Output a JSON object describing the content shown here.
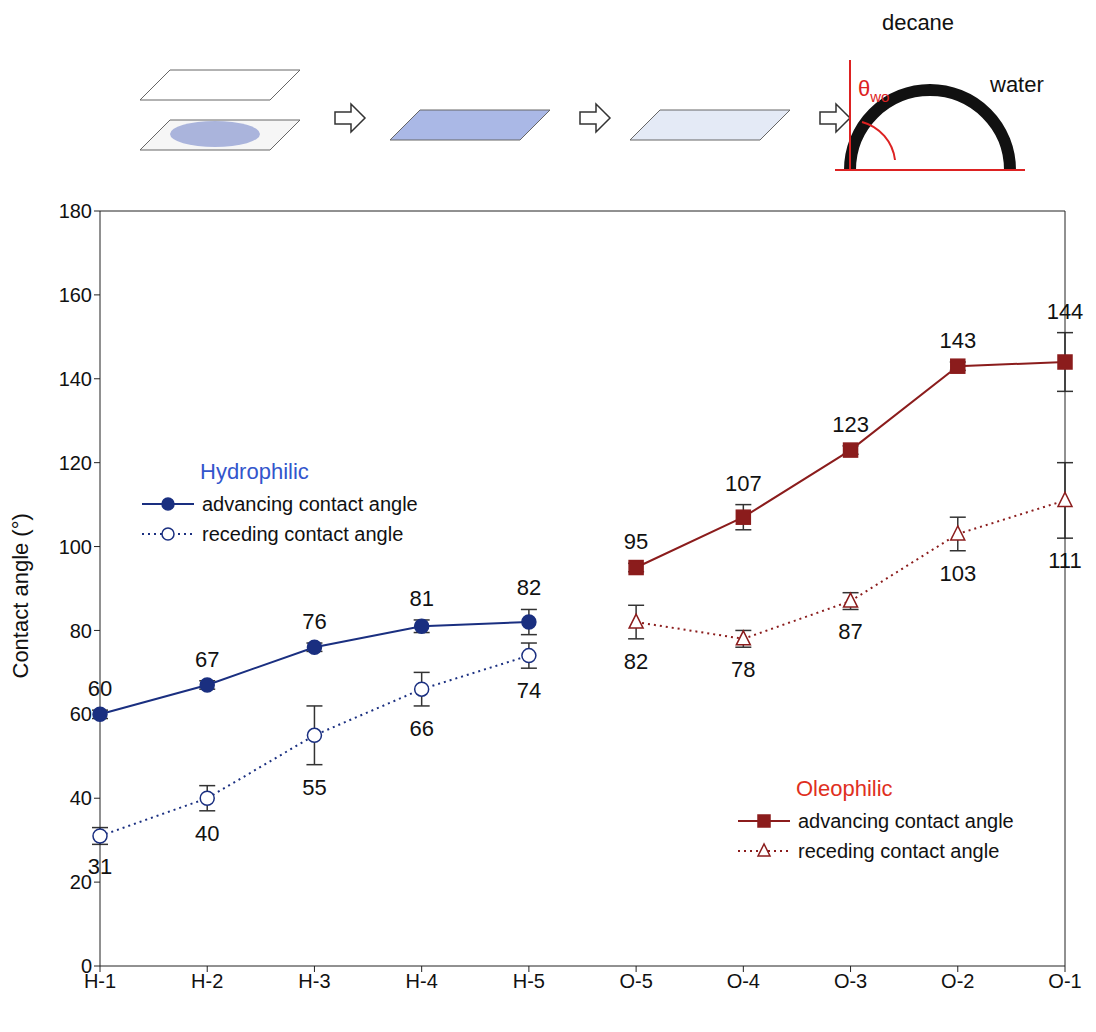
{
  "diagram": {
    "labels": {
      "solvent": "decane",
      "droplet": "water",
      "angle": "θwo"
    }
  },
  "chart_data": {
    "type": "line",
    "ylabel": "Contact angle (°)",
    "categories": [
      "H-1",
      "H-2",
      "H-3",
      "H-4",
      "H-5",
      "O-5",
      "O-4",
      "O-3",
      "O-2",
      "O-1"
    ],
    "ylim": [
      0,
      180
    ],
    "yticks": [
      0,
      20,
      40,
      60,
      80,
      100,
      120,
      140,
      160,
      180
    ],
    "data_labels": true,
    "groups": [
      {
        "name": "Hydrophilic",
        "color": "#3355cc",
        "legend": "upper left"
      },
      {
        "name": "Oleophilic",
        "color": "#e0301e",
        "legend": "lower right"
      }
    ],
    "series": [
      {
        "name": "advancing contact angle",
        "group": "Hydrophilic",
        "color": "#1a2f80",
        "marker": "circle",
        "line_style": "solid",
        "values": [
          60,
          67,
          76,
          81,
          82,
          null,
          null,
          null,
          null,
          null
        ],
        "errors": [
          1,
          1,
          1,
          1.5,
          3,
          null,
          null,
          null,
          null,
          null
        ]
      },
      {
        "name": "receding contact angle",
        "group": "Hydrophilic",
        "color": "#1a2f80",
        "marker": "open_circle",
        "line_style": "dotted",
        "values": [
          31,
          40,
          55,
          66,
          74,
          null,
          null,
          null,
          null,
          null
        ],
        "errors": [
          2,
          3,
          7,
          4,
          3,
          null,
          null,
          null,
          null,
          null
        ]
      },
      {
        "name": "advancing contact angle",
        "group": "Oleophilic",
        "color": "#8b1c1c",
        "marker": "square",
        "line_style": "solid",
        "values": [
          null,
          null,
          null,
          null,
          null,
          95,
          107,
          123,
          143,
          144
        ],
        "errors": [
          null,
          null,
          null,
          null,
          null,
          1,
          3,
          1,
          1,
          7
        ]
      },
      {
        "name": "receding contact angle",
        "group": "Oleophilic",
        "color": "#8b1c1c",
        "marker": "open_triangle",
        "line_style": "dotted",
        "values": [
          null,
          null,
          null,
          null,
          null,
          82,
          78,
          87,
          103,
          111
        ],
        "errors": [
          null,
          null,
          null,
          null,
          null,
          4,
          2,
          2,
          4,
          9
        ]
      }
    ]
  }
}
